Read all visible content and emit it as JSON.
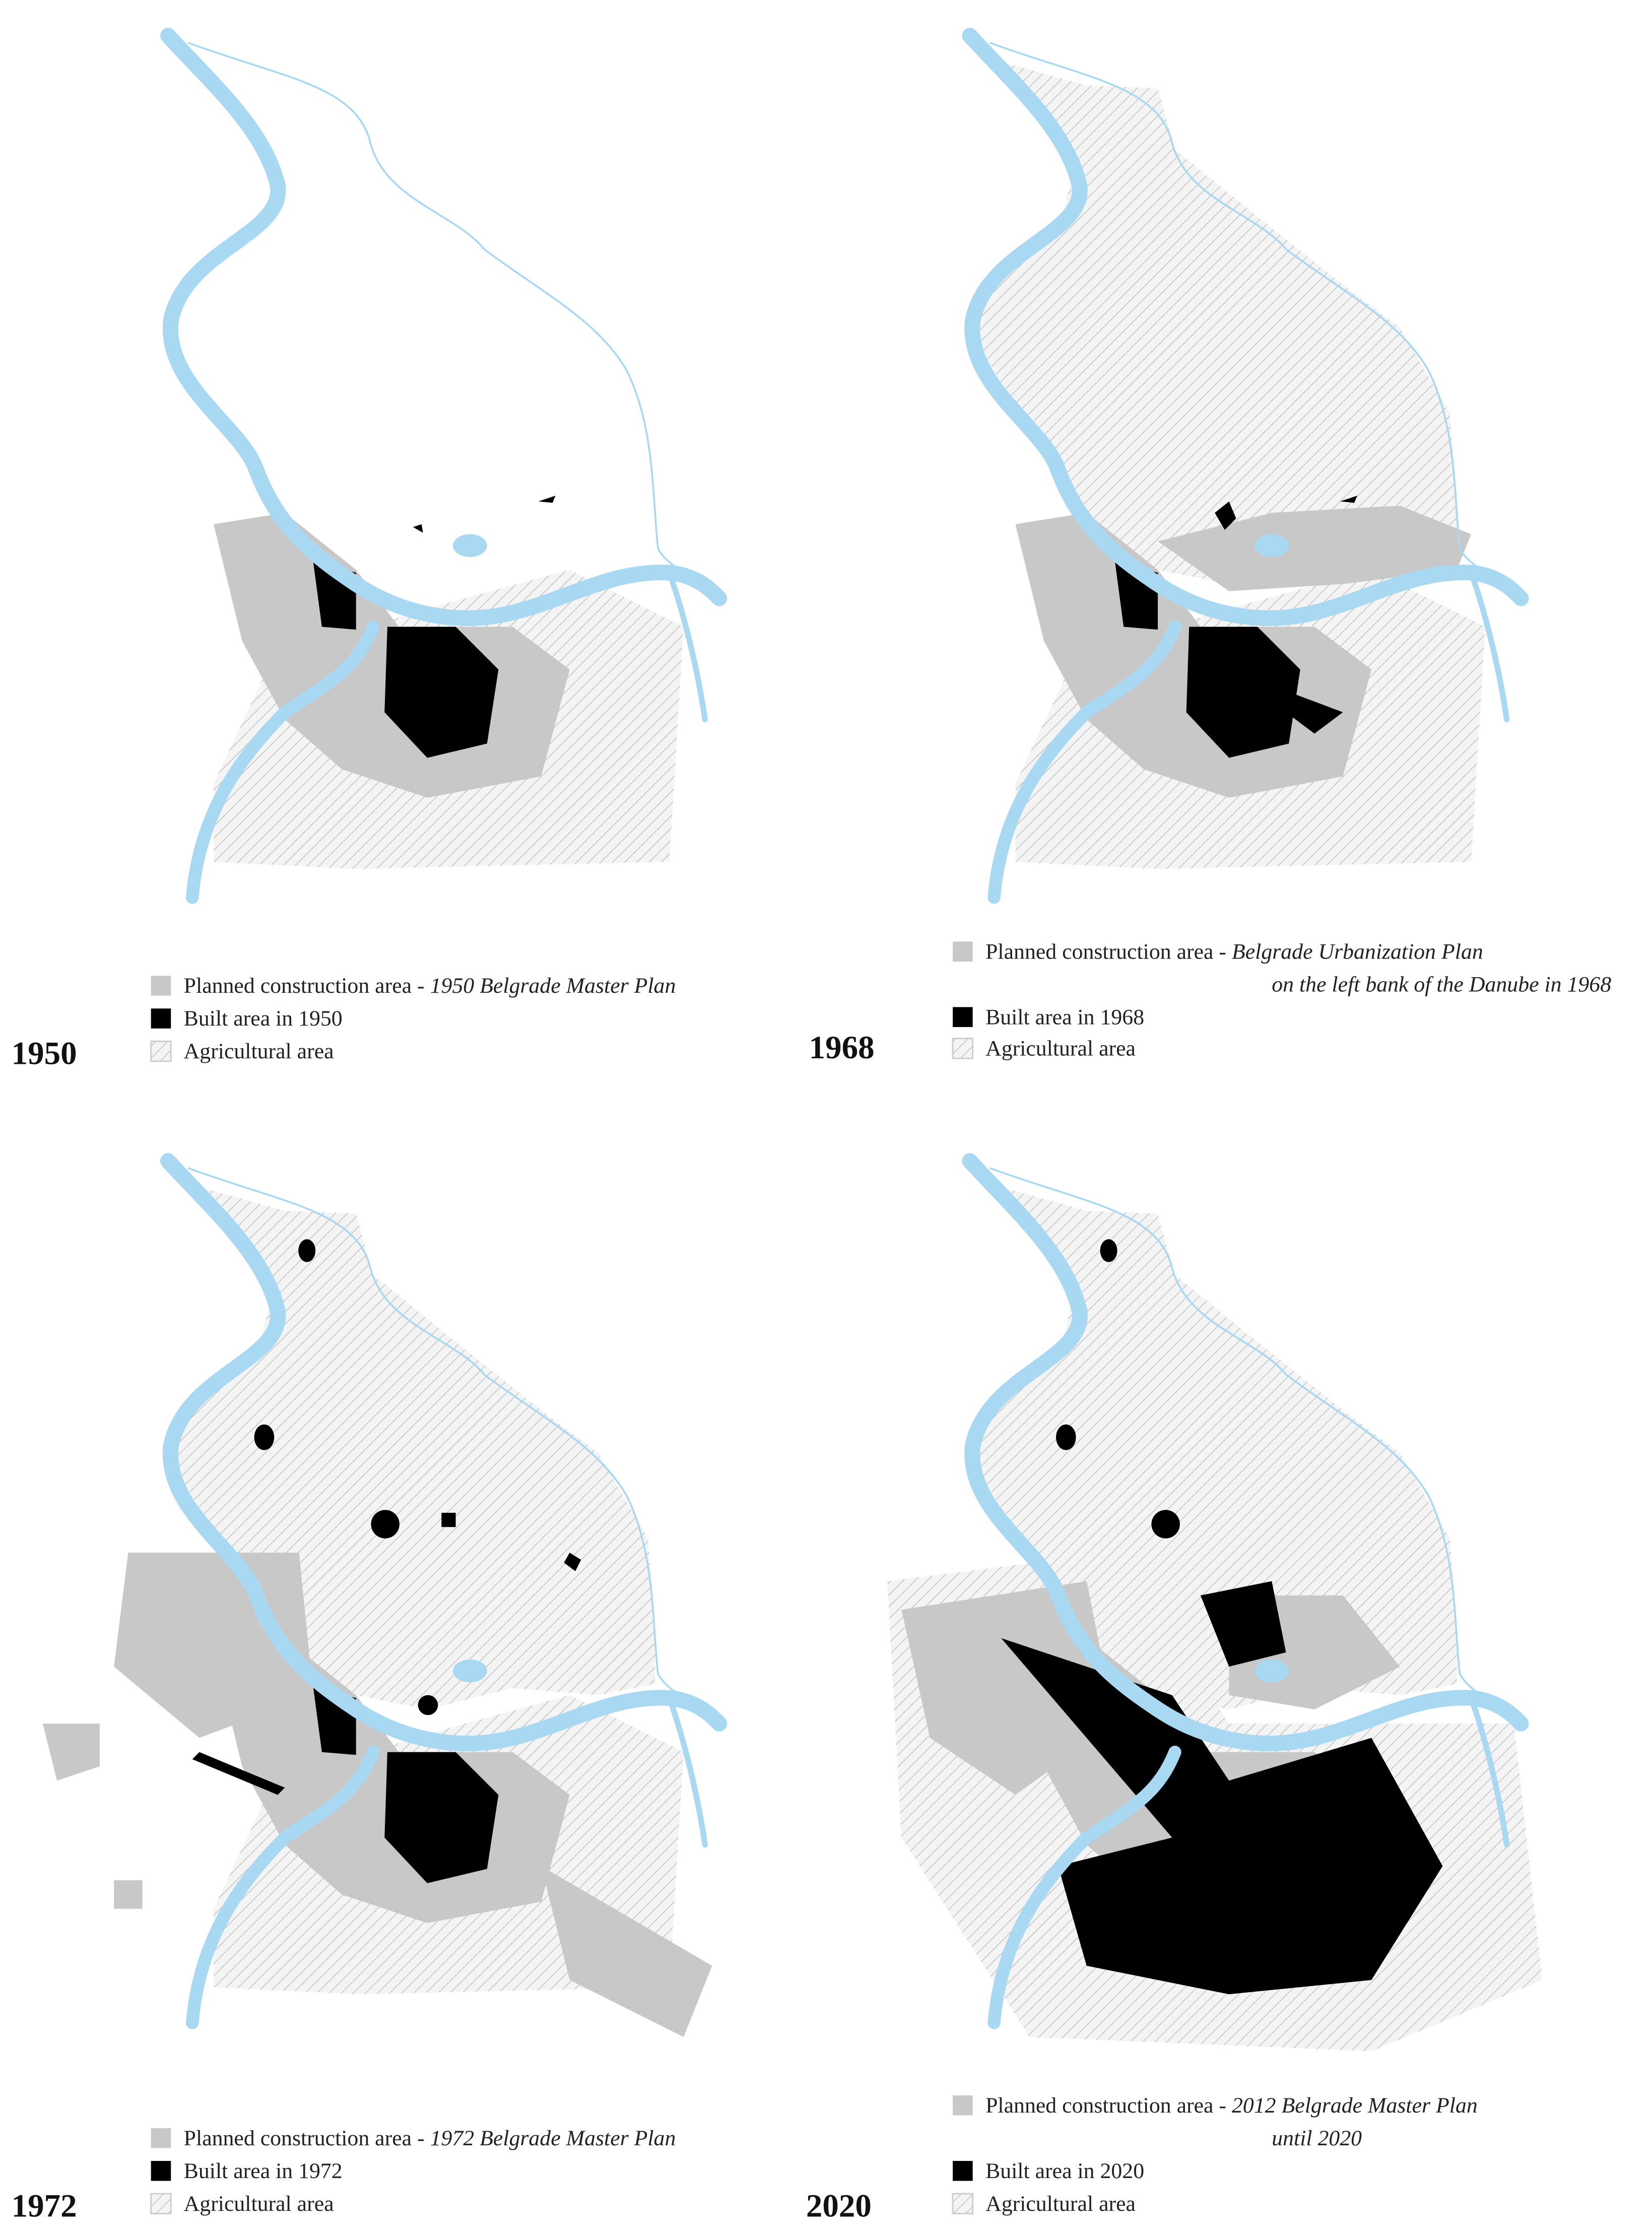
{
  "panels": [
    {
      "year": "1950",
      "legend": {
        "planned": "Planned construction area - ",
        "planned_plan": [
          "1950 Belgrade Master Plan"
        ],
        "built": "Built area in 1950",
        "agricultural": "Agricultural area"
      }
    },
    {
      "year": "1968",
      "legend": {
        "planned": "Planned construction area - ",
        "planned_plan": [
          "Belgrade Urbanization Plan",
          "on the left bank of the Danube in 1968"
        ],
        "built": "Built area in 1968",
        "agricultural": "Agricultural area"
      }
    },
    {
      "year": "1972",
      "legend": {
        "planned": "Planned construction area - ",
        "planned_plan": [
          "1972 Belgrade Master Plan"
        ],
        "built": "Built area in 1972",
        "agricultural": "Agricultural area"
      }
    },
    {
      "year": "2020",
      "legend": {
        "planned": "Planned construction area - ",
        "planned_plan": [
          "2012 Belgrade Master Plan",
          "until 2020"
        ],
        "built": "Built area in 2020",
        "agricultural": "Agricultural area"
      }
    }
  ]
}
